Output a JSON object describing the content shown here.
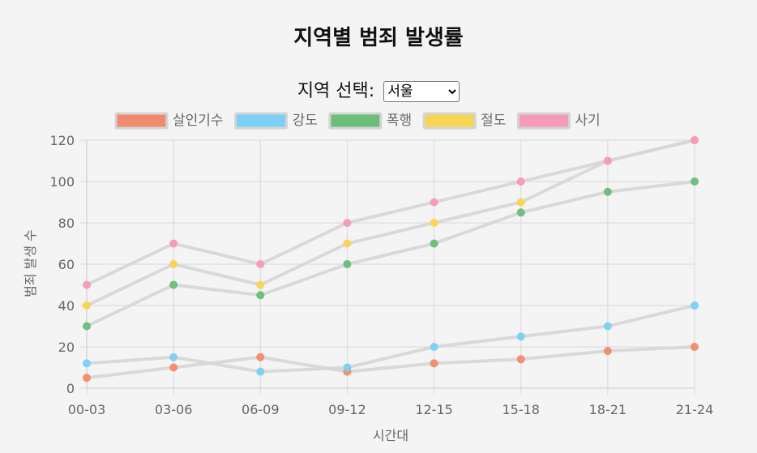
{
  "page": {
    "title": "지역별 범죄 발생률",
    "region_label": "지역 선택:",
    "region_selected": "서울",
    "region_options": [
      "서울"
    ]
  },
  "chart_data": {
    "type": "line",
    "xlabel": "시간대",
    "ylabel": "범죄 발생 수",
    "ylim": [
      0,
      120
    ],
    "yticks": [
      0,
      20,
      40,
      60,
      80,
      100,
      120
    ],
    "grid": true,
    "legend_position": "top",
    "line_color": "#d6d6d6",
    "categories": [
      "00-03",
      "03-06",
      "06-09",
      "09-12",
      "12-15",
      "15-18",
      "18-21",
      "21-24"
    ],
    "series": [
      {
        "name": "살인기수",
        "color": "#f28b6e",
        "border": "#e0a595",
        "values": [
          5,
          10,
          15,
          8,
          12,
          14,
          18,
          20
        ]
      },
      {
        "name": "강도",
        "color": "#7ccff6",
        "border": "#9fcfe8",
        "values": [
          12,
          15,
          8,
          10,
          20,
          25,
          30,
          40
        ]
      },
      {
        "name": "폭행",
        "color": "#6bbd7a",
        "border": "#8fc59a",
        "values": [
          30,
          50,
          45,
          60,
          70,
          85,
          95,
          100
        ]
      },
      {
        "name": "절도",
        "color": "#f7d454",
        "border": "#e8cf7a",
        "values": [
          40,
          60,
          50,
          70,
          80,
          90,
          110,
          120
        ]
      },
      {
        "name": "사기",
        "color": "#f59ab8",
        "border": "#e6a9bd",
        "values": [
          50,
          70,
          60,
          80,
          90,
          100,
          110,
          120
        ]
      }
    ]
  }
}
